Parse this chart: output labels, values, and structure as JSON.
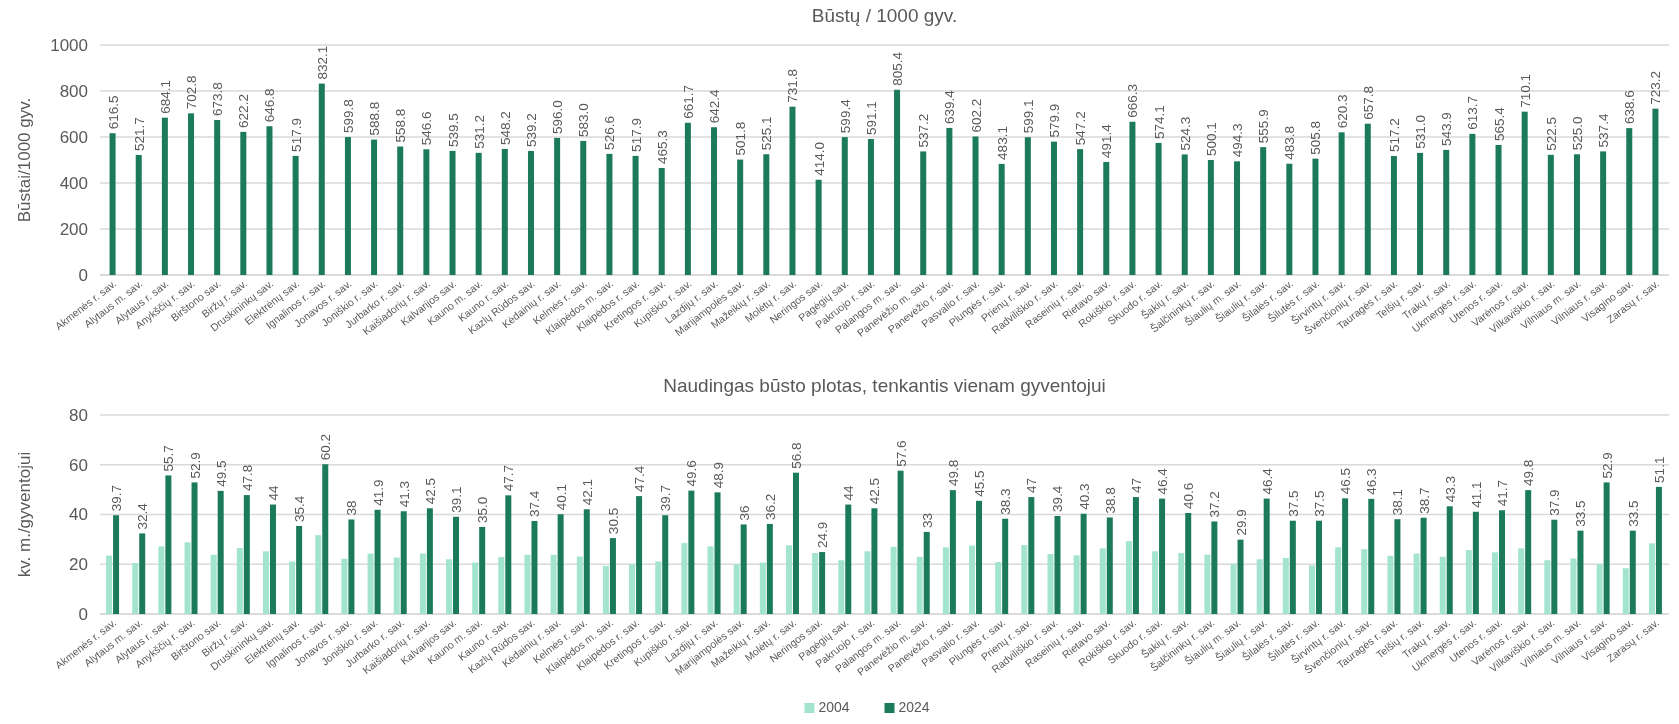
{
  "chart_data": [
    {
      "type": "bar",
      "title": "Būstų / 1000 gyv.",
      "ylabel": "Būstai/1000 gyv.",
      "categories": [
        "Akmenės r. sav.",
        "Alytaus m. sav.",
        "Alytaus r. sav.",
        "Anykščių r. sav.",
        "Birštono sav.",
        "Biržų r. sav.",
        "Druskininkų sav.",
        "Elektrėnų sav.",
        "Ignalinos r. sav.",
        "Jonavos r. sav.",
        "Joniškio r. sav.",
        "Jurbarko r. sav.",
        "Kaišiadorių r. sav.",
        "Kalvarijos sav.",
        "Kauno m. sav.",
        "Kauno r. sav.",
        "Kazlų Rūdos sav.",
        "Kėdainių r. sav.",
        "Kelmės r. sav.",
        "Klaipėdos m. sav.",
        "Klaipėdos r. sav.",
        "Kretingos r. sav.",
        "Kupiškio r. sav.",
        "Lazdijų r. sav.",
        "Marijampolės sav.",
        "Mažeikių r. sav.",
        "Molėtų r. sav.",
        "Neringos sav.",
        "Pagėgių sav.",
        "Pakruojo r. sav.",
        "Palangos m. sav.",
        "Panevėžio m. sav.",
        "Panevėžio r. sav.",
        "Pasvalio r. sav.",
        "Plungės r. sav.",
        "Prienų r. sav.",
        "Radviliškio r. sav.",
        "Raseinių r. sav.",
        "Rietavo sav.",
        "Rokiškio r. sav.",
        "Skuodo r. sav.",
        "Šakių r. sav.",
        "Šalčininkų r. sav.",
        "Šiaulių m. sav.",
        "Šiaulių r. sav.",
        "Šilalės r. sav.",
        "Šilutės r. sav.",
        "Širvintų r. sav.",
        "Švenčionių r. sav.",
        "Tauragės r. sav.",
        "Telšių r. sav.",
        "Trakų r. sav.",
        "Ukmergės r. sav.",
        "Utenos r. sav.",
        "Varėnos r. sav.",
        "Vilkaviškio r. sav.",
        "Vilniaus m. sav.",
        "Vilniaus r. sav.",
        "Visagino sav.",
        "Zarasų r. sav."
      ],
      "series": [
        {
          "color": "#1b7a5a",
          "values": [
            616.5,
            521.7,
            684.1,
            702.8,
            673.8,
            622.2,
            646.8,
            517.9,
            832.1,
            599.8,
            588.8,
            558.8,
            546.6,
            539.5,
            531.2,
            548.2,
            539.2,
            596.0,
            583.0,
            526.6,
            517.9,
            465.3,
            661.7,
            642.4,
            501.8,
            525.1,
            731.8,
            414.0,
            599.4,
            591.1,
            805.4,
            537.2,
            639.4,
            602.2,
            483.1,
            599.1,
            579.9,
            547.2,
            491.4,
            666.3,
            574.1,
            524.3,
            500.1,
            494.3,
            555.9,
            483.8,
            505.8,
            620.3,
            657.8,
            517.2,
            531.0,
            543.9,
            613.7,
            565.4,
            710.1,
            522.5,
            525.0,
            537.4,
            638.6,
            723.2
          ],
          "value_labels": [
            "616.5",
            "521.7",
            "684.1",
            "702.8",
            "673.8",
            "622.2",
            "646.8",
            "517.9",
            "832.1",
            "599.8",
            "588.8",
            "558.8",
            "546.6",
            "539.5",
            "531.2",
            "548.2",
            "539.2",
            "596.0",
            "583.0",
            "526.6",
            "517.9",
            "465.3",
            "661.7",
            "642.4",
            "501.8",
            "525.1",
            "731.8",
            "414.0",
            "599.4",
            "591.1",
            "805.4",
            "537.2",
            "639.4",
            "602.2",
            "483.1",
            "599.1",
            "579.9",
            "547.2",
            "491.4",
            "666.3",
            "574.1",
            "524.3",
            "500.1",
            "494.3",
            "555.9",
            "483.8",
            "505.8",
            "620.3",
            "657.8",
            "517.2",
            "531.0",
            "543.9",
            "613.7",
            "565.4",
            "710.1",
            "522.5",
            "525.0",
            "537.4",
            "638.6",
            "723.2"
          ]
        }
      ],
      "ylim": [
        0,
        1000
      ],
      "yticks": [
        0,
        200,
        400,
        600,
        800,
        1000
      ],
      "grid": "y"
    },
    {
      "type": "bar",
      "title": "Naudingas būsto plotas, tenkantis vienam gyventojui",
      "ylabel": "kv. m./gyventojui",
      "categories": [
        "Akmenės r. sav.",
        "Alytaus m. sav.",
        "Alytaus r. sav.",
        "Anykščių r. sav.",
        "Birštono sav.",
        "Biržų r. sav.",
        "Druskininkų sav.",
        "Elektrėnų sav.",
        "Ignalinos r. sav.",
        "Jonavos r. sav.",
        "Joniškio r. sav.",
        "Jurbarko r. sav.",
        "Kaišiadorių r. sav.",
        "Kalvarijos sav.",
        "Kauno m. sav.",
        "Kauno r. sav.",
        "Kazlų Rūdos sav.",
        "Kėdainių r. sav.",
        "Kelmės r. sav.",
        "Klaipėdos m. sav.",
        "Klaipėdos r. sav.",
        "Kretingos r. sav.",
        "Kupiškio r. sav.",
        "Lazdijų r. sav.",
        "Marijampolės sav.",
        "Mažeikių r. sav.",
        "Molėtų r. sav.",
        "Neringos sav.",
        "Pagėgių sav.",
        "Pakruojo r. sav.",
        "Palangos m. sav.",
        "Panevėžio m. sav.",
        "Panevėžio r. sav.",
        "Pasvalio r. sav.",
        "Plungės r. sav.",
        "Prienų r. sav.",
        "Radviliškio r. sav.",
        "Raseinių r. sav.",
        "Rietavo sav.",
        "Rokiškio r. sav.",
        "Skuodo r. sav.",
        "Šakių r. sav.",
        "Šalčininkų r. sav.",
        "Šiaulių m. sav.",
        "Šiaulių r. sav.",
        "Šilalės r. sav.",
        "Šilutės r. sav.",
        "Širvintų r. sav.",
        "Švenčionių r. sav.",
        "Tauragės r. sav.",
        "Telšių r. sav.",
        "Trakų r. sav.",
        "Ukmergės r. sav.",
        "Utenos r. sav.",
        "Varėnos r. sav.",
        "Vilkaviškio r. sav.",
        "Vilniaus m. sav.",
        "Vilniaus r. sav.",
        "Visagino sav.",
        "Zarasų r. sav."
      ],
      "series": [
        {
          "name": "2004",
          "color": "#a3e4d0",
          "values": [
            23.5,
            20.5,
            27.2,
            28.8,
            23.8,
            26.5,
            25.2,
            21.1,
            31.7,
            22.2,
            24.3,
            22.7,
            24.3,
            22.0,
            20.7,
            22.9,
            23.8,
            23.8,
            23.1,
            19.3,
            20.0,
            21.1,
            28.5,
            27.2,
            20.0,
            20.7,
            27.6,
            24.5,
            21.6,
            25.2,
            27.0,
            23.0,
            26.8,
            27.5,
            20.9,
            27.7,
            24.1,
            23.6,
            26.4,
            29.3,
            25.2,
            24.5,
            23.9,
            20.2,
            22.0,
            22.5,
            19.5,
            26.8,
            26.1,
            23.4,
            24.3,
            23.0,
            25.7,
            24.8,
            26.4,
            21.6,
            22.3,
            20.0,
            18.4,
            28.4
          ]
        },
        {
          "name": "2024",
          "color": "#1b7a5a",
          "values": [
            39.7,
            32.4,
            55.7,
            52.9,
            49.5,
            47.8,
            44,
            35.4,
            60.2,
            38,
            41.9,
            41.3,
            42.5,
            39.1,
            35.0,
            47.7,
            37.4,
            40.1,
            42.1,
            30.5,
            47.4,
            39.7,
            49.6,
            48.9,
            36,
            36.2,
            56.8,
            24.9,
            44,
            42.5,
            57.6,
            33,
            49.8,
            45.5,
            38.3,
            47,
            39.4,
            40.3,
            38.8,
            47,
            46.4,
            40.6,
            37.2,
            29.9,
            46.4,
            37.5,
            37.5,
            46.5,
            46.3,
            38.1,
            38.7,
            43.3,
            41.1,
            41.7,
            49.8,
            37.9,
            33.5,
            52.9,
            33.5,
            51.1
          ],
          "value_labels": [
            "39.7",
            "32.4",
            "55.7",
            "52.9",
            "49.5",
            "47.8",
            "44",
            "35.4",
            "60.2",
            "38",
            "41.9",
            "41.3",
            "42.5",
            "39.1",
            "35.0",
            "47.7",
            "37.4",
            "40.1",
            "42.1",
            "30.5",
            "47.4",
            "39.7",
            "49.6",
            "48.9",
            "36",
            "36.2",
            "56.8",
            "24.9",
            "44",
            "42.5",
            "57.6",
            "33",
            "49.8",
            "45.5",
            "38.3",
            "47",
            "39.4",
            "40.3",
            "38.8",
            "47",
            "46.4",
            "40.6",
            "37.2",
            "29.9",
            "46.4",
            "37.5",
            "37.5",
            "46.5",
            "46.3",
            "38.1",
            "38.7",
            "43.3",
            "41.1",
            "41.7",
            "49.8",
            "37.9",
            "33.5",
            "52.9",
            "33.5",
            "51.1"
          ]
        }
      ],
      "ylim": [
        0,
        80
      ],
      "yticks": [
        0,
        20,
        40,
        60,
        80
      ],
      "grid": "y",
      "legend": "bottom"
    }
  ]
}
